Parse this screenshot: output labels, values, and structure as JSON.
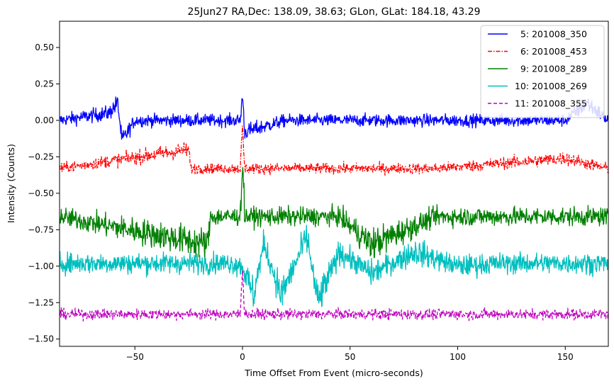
{
  "chart_data": {
    "type": "line",
    "title": "25Jun27 RA,Dec:  138.09,  38.63; GLon, GLat:  184.18,  43.29",
    "xlabel": "Time Offset From Event (micro-seconds)",
    "ylabel": "Intensity (Counts)",
    "xlim": [
      -85,
      170
    ],
    "ylim": [
      -1.55,
      0.68
    ],
    "xticks": [
      -50,
      0,
      50,
      100,
      150
    ],
    "xtick_labels": [
      "−50",
      "0",
      "50",
      "100",
      "150"
    ],
    "yticks": [
      0.5,
      0.25,
      0.0,
      -0.25,
      -0.5,
      -0.75,
      -1.0,
      -1.25,
      -1.5
    ],
    "ytick_labels": [
      "0.50",
      "0.25",
      "0.00",
      "−0.25",
      "−0.50",
      "−0.75",
      "−1.00",
      "−1.25",
      "−1.50"
    ],
    "grid": false,
    "legend_position": "top-right",
    "series": [
      {
        "name": "  5: 201008_350",
        "color": "#0000ff",
        "linestyle": "solid",
        "baseline": 0.0,
        "noise": 0.03,
        "points": [
          [
            -85,
            0.0
          ],
          [
            -62,
            0.05
          ],
          [
            -58,
            0.12
          ],
          [
            -56,
            -0.14
          ],
          [
            -50,
            0.0
          ],
          [
            -1,
            0.0
          ],
          [
            0,
            0.18
          ],
          [
            1,
            -0.08
          ],
          [
            20,
            0.0
          ],
          [
            90,
            0.0
          ],
          [
            150,
            0.0
          ],
          [
            160,
            0.12
          ],
          [
            170,
            0.0
          ]
        ]
      },
      {
        "name": "  6: 201008_453",
        "color": "#ff0000",
        "linestyle": "dashdot",
        "baseline": -0.33,
        "noise": 0.025,
        "points": [
          [
            -85,
            -0.33
          ],
          [
            -25,
            -0.2
          ],
          [
            -24,
            -0.33
          ],
          [
            -1,
            -0.33
          ],
          [
            0,
            -0.05
          ],
          [
            1,
            -0.33
          ],
          [
            90,
            -0.33
          ],
          [
            150,
            -0.26
          ],
          [
            170,
            -0.33
          ]
        ]
      },
      {
        "name": "  9: 201008_289",
        "color": "#008000",
        "linestyle": "solid",
        "baseline": -0.66,
        "noise": 0.045,
        "points": [
          [
            -85,
            -0.66
          ],
          [
            -16,
            -0.85
          ],
          [
            -15,
            -0.66
          ],
          [
            -1,
            -0.66
          ],
          [
            0,
            -0.25
          ],
          [
            1,
            -0.66
          ],
          [
            45,
            -0.66
          ],
          [
            60,
            -0.85
          ],
          [
            90,
            -0.66
          ],
          [
            150,
            -0.66
          ],
          [
            170,
            -0.66
          ]
        ]
      },
      {
        "name": "10: 201008_269",
        "color": "#00bfbf",
        "linestyle": "solid",
        "baseline": -0.98,
        "noise": 0.05,
        "points": [
          [
            -85,
            -0.98
          ],
          [
            -5,
            -0.98
          ],
          [
            0,
            -1.0
          ],
          [
            5,
            -1.2
          ],
          [
            10,
            -0.85
          ],
          [
            18,
            -1.2
          ],
          [
            30,
            -0.8
          ],
          [
            35,
            -1.25
          ],
          [
            45,
            -0.9
          ],
          [
            60,
            -1.05
          ],
          [
            80,
            -0.9
          ],
          [
            100,
            -1.0
          ],
          [
            120,
            -0.98
          ],
          [
            170,
            -0.98
          ]
        ]
      },
      {
        "name": "11: 201008_355",
        "color": "#bf00bf",
        "linestyle": "dashed",
        "baseline": -1.33,
        "noise": 0.025,
        "points": [
          [
            -85,
            -1.33
          ],
          [
            -1,
            -1.33
          ],
          [
            0,
            -1.0
          ],
          [
            1,
            -1.33
          ],
          [
            90,
            -1.33
          ],
          [
            170,
            -1.33
          ]
        ]
      }
    ]
  }
}
